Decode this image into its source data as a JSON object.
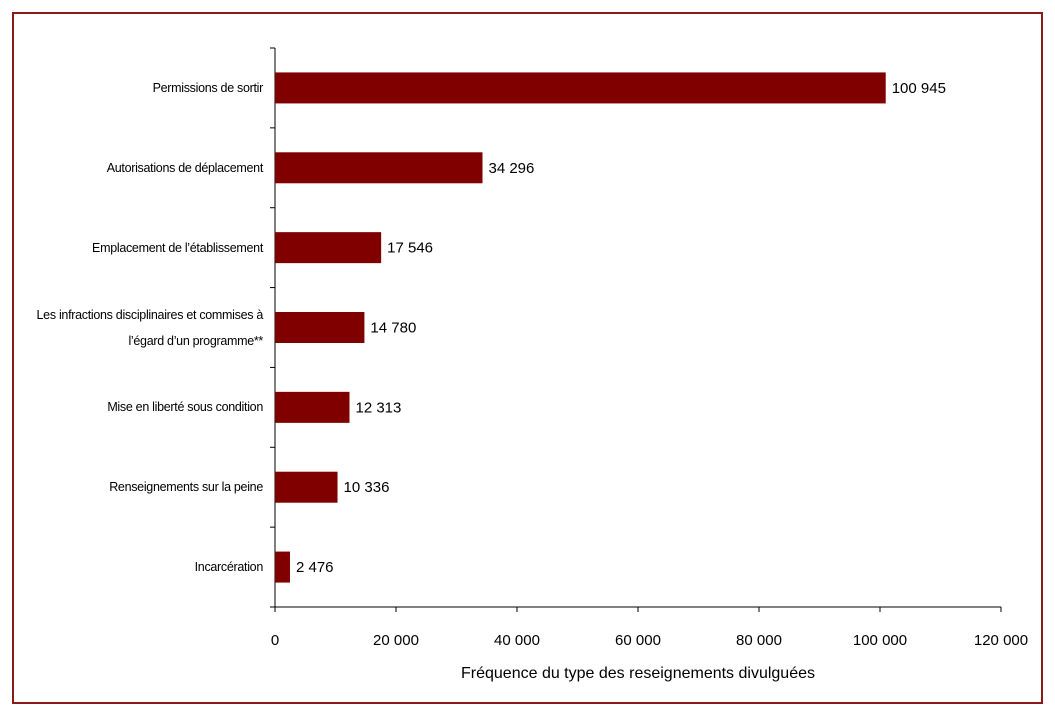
{
  "chart_data": {
    "type": "bar",
    "orientation": "horizontal",
    "x_label": "Fréquence du type des reseignements divulguées",
    "categories": [
      "Permissions de sortir",
      "Autorisations de déplacement",
      "Emplacement de l’établissement",
      "Les infractions disciplinaires et commises à l’égard d’un programme**",
      "Mise en liberté sous condition",
      "Renseignements sur la peine",
      "Incarcération"
    ],
    "values": [
      100945,
      34296,
      17546,
      14780,
      12313,
      10336,
      2476
    ],
    "value_labels": [
      "100 945",
      "34 296",
      "17 546",
      "14 780",
      "12 313",
      "10 336",
      "2 476"
    ],
    "color": "#800000",
    "xlim": [
      0,
      120000
    ],
    "xticks": [
      0,
      {
        "value": 20000,
        "label": "20 000"
      },
      {
        "value": 40000,
        "label": "40 000"
      },
      {
        "value": 60000,
        "label": "60 000"
      },
      {
        "value": 80000,
        "label": "80 000"
      },
      {
        "value": 100000,
        "label": "100 000"
      },
      {
        "value": 120000,
        "label": "120 000"
      }
    ]
  }
}
